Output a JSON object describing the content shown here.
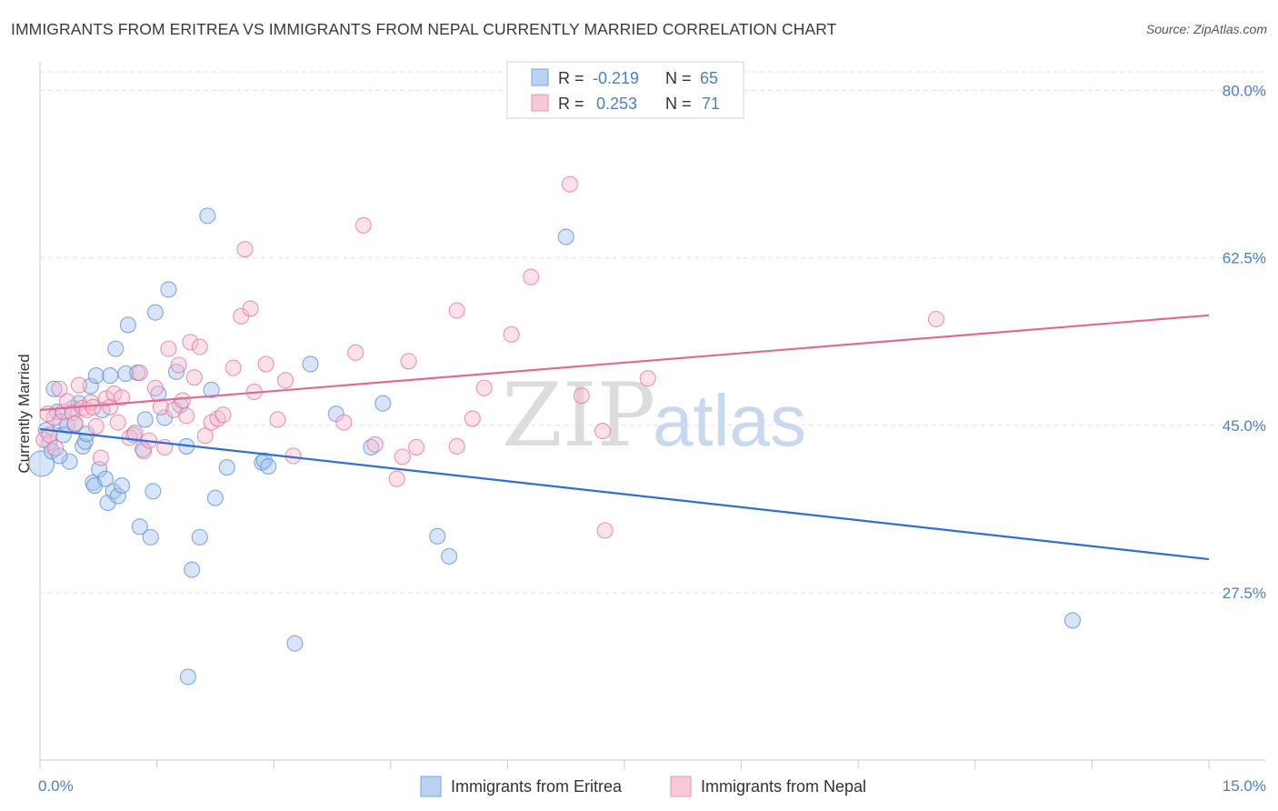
{
  "title": "IMMIGRANTS FROM ERITREA VS IMMIGRANTS FROM NEPAL CURRENTLY MARRIED CORRELATION CHART",
  "source": "Source: ZipAtlas.com",
  "watermark": {
    "zip": "ZIP",
    "atlas": "atlas"
  },
  "chart_data": {
    "type": "scatter",
    "ylabel": "Currently Married",
    "xlim": [
      0,
      15
    ],
    "ylim": [
      10,
      83
    ],
    "x_ticks": [
      {
        "value": 0,
        "label": "0.0%"
      },
      {
        "value": 15,
        "label": "15.0%"
      }
    ],
    "y_ticks": [
      {
        "value": 80,
        "label": "80.0%"
      },
      {
        "value": 62.5,
        "label": "62.5%"
      },
      {
        "value": 45,
        "label": "45.0%"
      },
      {
        "value": 27.5,
        "label": "27.5%"
      }
    ],
    "legend_stats": [
      {
        "r_label": "R = ",
        "r": "-0.219",
        "n_label": "N = ",
        "n": "65"
      },
      {
        "r_label": "R = ",
        "r": "0.253",
        "n_label": "N = ",
        "n": "71"
      }
    ],
    "series": [
      {
        "name": "Immigrants from Eritrea",
        "color": "#5b8fd6",
        "fill": "#a9c6ef",
        "trend": [
          [
            0,
            44.6
          ],
          [
            15,
            31.0
          ]
        ],
        "points": [
          [
            0.02,
            41.0
          ],
          [
            0.08,
            44.5
          ],
          [
            0.12,
            43.2
          ],
          [
            0.15,
            42.3
          ],
          [
            0.18,
            48.8
          ],
          [
            0.22,
            46.4
          ],
          [
            0.26,
            45.4
          ],
          [
            0.3,
            44.0
          ],
          [
            0.35,
            45.0
          ],
          [
            0.38,
            41.2
          ],
          [
            0.42,
            46.8
          ],
          [
            0.45,
            45.1
          ],
          [
            0.5,
            47.3
          ],
          [
            0.55,
            42.8
          ],
          [
            0.58,
            43.3
          ],
          [
            0.6,
            44.1
          ],
          [
            0.65,
            49.1
          ],
          [
            0.68,
            39.0
          ],
          [
            0.7,
            38.7
          ],
          [
            0.72,
            50.2
          ],
          [
            0.76,
            40.4
          ],
          [
            0.8,
            46.6
          ],
          [
            0.84,
            39.4
          ],
          [
            0.87,
            36.9
          ],
          [
            0.9,
            50.2
          ],
          [
            0.94,
            38.1
          ],
          [
            0.97,
            53.0
          ],
          [
            1.0,
            37.6
          ],
          [
            1.05,
            38.7
          ],
          [
            1.1,
            50.4
          ],
          [
            1.13,
            55.5
          ],
          [
            1.2,
            44.0
          ],
          [
            1.25,
            50.5
          ],
          [
            1.28,
            34.4
          ],
          [
            1.32,
            42.5
          ],
          [
            1.35,
            45.6
          ],
          [
            1.42,
            33.3
          ],
          [
            1.45,
            38.1
          ],
          [
            1.48,
            56.8
          ],
          [
            1.52,
            48.3
          ],
          [
            1.65,
            59.2
          ],
          [
            1.75,
            50.6
          ],
          [
            1.8,
            47.1
          ],
          [
            1.88,
            42.8
          ],
          [
            1.95,
            29.9
          ],
          [
            2.05,
            33.3
          ],
          [
            2.15,
            66.9
          ],
          [
            2.2,
            48.7
          ],
          [
            2.25,
            37.4
          ],
          [
            2.4,
            40.6
          ],
          [
            2.85,
            41.1
          ],
          [
            2.88,
            41.3
          ],
          [
            2.93,
            40.7
          ],
          [
            3.27,
            22.2
          ],
          [
            3.47,
            51.4
          ],
          [
            3.8,
            46.2
          ],
          [
            4.25,
            42.7
          ],
          [
            4.4,
            47.3
          ],
          [
            5.1,
            33.4
          ],
          [
            5.25,
            31.3
          ],
          [
            6.75,
            64.7
          ],
          [
            13.25,
            24.6
          ],
          [
            1.9,
            18.7
          ],
          [
            0.25,
            41.8
          ],
          [
            1.6,
            45.8
          ]
        ]
      },
      {
        "name": "Immigrants from Nepal",
        "color": "#e6739b",
        "fill": "#f6bcd0",
        "trend": [
          [
            0,
            46.6
          ],
          [
            15,
            56.5
          ]
        ],
        "points": [
          [
            0.05,
            43.5
          ],
          [
            0.12,
            44.0
          ],
          [
            0.18,
            45.8
          ],
          [
            0.25,
            48.8
          ],
          [
            0.3,
            46.4
          ],
          [
            0.35,
            47.5
          ],
          [
            0.42,
            46.3
          ],
          [
            0.5,
            49.2
          ],
          [
            0.55,
            46.8
          ],
          [
            0.6,
            46.6
          ],
          [
            0.65,
            47.4
          ],
          [
            0.72,
            44.9
          ],
          [
            0.78,
            41.6
          ],
          [
            0.85,
            47.8
          ],
          [
            0.9,
            46.9
          ],
          [
            0.95,
            48.3
          ],
          [
            1.0,
            45.3
          ],
          [
            1.05,
            47.9
          ],
          [
            1.15,
            43.7
          ],
          [
            1.22,
            44.2
          ],
          [
            1.28,
            50.5
          ],
          [
            1.33,
            42.3
          ],
          [
            1.4,
            43.4
          ],
          [
            1.48,
            48.9
          ],
          [
            1.55,
            46.9
          ],
          [
            1.6,
            42.7
          ],
          [
            1.65,
            53.0
          ],
          [
            1.72,
            46.6
          ],
          [
            1.78,
            51.3
          ],
          [
            1.83,
            47.6
          ],
          [
            1.88,
            46.0
          ],
          [
            1.93,
            53.7
          ],
          [
            1.98,
            50.0
          ],
          [
            2.05,
            53.2
          ],
          [
            2.12,
            43.9
          ],
          [
            2.2,
            45.3
          ],
          [
            2.28,
            45.7
          ],
          [
            2.35,
            46.1
          ],
          [
            2.48,
            51.0
          ],
          [
            2.58,
            56.4
          ],
          [
            2.63,
            63.4
          ],
          [
            2.7,
            57.2
          ],
          [
            2.75,
            48.5
          ],
          [
            2.9,
            51.4
          ],
          [
            3.05,
            45.6
          ],
          [
            3.15,
            49.7
          ],
          [
            3.25,
            41.8
          ],
          [
            3.9,
            45.3
          ],
          [
            4.05,
            52.6
          ],
          [
            4.15,
            65.9
          ],
          [
            4.3,
            43.0
          ],
          [
            4.58,
            39.4
          ],
          [
            4.65,
            41.7
          ],
          [
            4.73,
            51.7
          ],
          [
            4.83,
            42.7
          ],
          [
            5.35,
            57.0
          ],
          [
            5.35,
            42.8
          ],
          [
            5.55,
            45.7
          ],
          [
            5.7,
            48.9
          ],
          [
            6.05,
            54.5
          ],
          [
            6.3,
            60.5
          ],
          [
            6.8,
            70.2
          ],
          [
            6.95,
            48.1
          ],
          [
            7.22,
            44.4
          ],
          [
            7.25,
            34.0
          ],
          [
            7.8,
            49.9
          ],
          [
            11.5,
            56.1
          ],
          [
            0.1,
            46.2
          ],
          [
            0.2,
            42.6
          ],
          [
            0.45,
            45.2
          ],
          [
            0.68,
            46.9
          ]
        ]
      }
    ]
  }
}
